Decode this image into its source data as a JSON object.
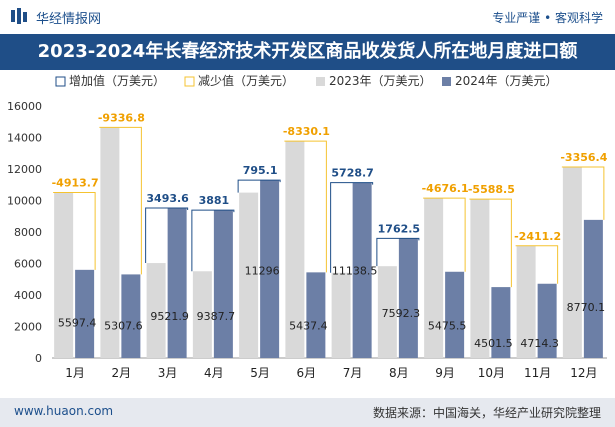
{
  "header": {
    "brand": "华经情报网",
    "tagline": "专业严谨 • 客观科学",
    "title": "2023-2024年长春经济技术开发区商品收发货人所在地月度进口额"
  },
  "footer": {
    "website": "www.huaon.com",
    "source": "数据来源：中国海关，华经产业研究院整理"
  },
  "colors": {
    "title_bg": "#1f4e87",
    "series_2023": "#d9d9d9",
    "series_2024": "#6c7fa6",
    "increase_border": "#1f4e87",
    "decrease_border": "#f5c330",
    "increase_label": "#1f4e87",
    "decrease_label": "#f0a000"
  },
  "chart_data": {
    "type": "bar",
    "title": "2023-2024年长春经济技术开发区商品收发货人所在地月度进口额",
    "ylim": [
      0,
      16000
    ],
    "yticks": [
      0,
      2000,
      4000,
      6000,
      8000,
      10000,
      12000,
      14000,
      16000
    ],
    "categories": [
      "1月",
      "2月",
      "3月",
      "4月",
      "5月",
      "6月",
      "7月",
      "8月",
      "9月",
      "10月",
      "11月",
      "12月"
    ],
    "legend": [
      "增加值（万美元）",
      "减少值（万美元）",
      "2023年（万美元）",
      "2024年（万美元）"
    ],
    "series": [
      {
        "name": "2023年（万美元）",
        "values": [
          10511.1,
          14644.4,
          6028.3,
          5506.7,
          10500.9,
          13767.5,
          5409.8,
          5829.7,
          10151.6,
          10090.0,
          7125.5,
          12126.7
        ]
      },
      {
        "name": "2024年（万美元）",
        "values": [
          5597.4,
          5307.6,
          9521.9,
          9387.7,
          11296,
          5437.4,
          11138.5,
          7592.3,
          5475.5,
          4501.5,
          4714.3,
          8770.1
        ]
      }
    ],
    "difference": [
      -4913.7,
      -9336.8,
      3493.6,
      3881,
      795.1,
      -8330.1,
      5728.7,
      1762.5,
      -4676.1,
      -5588.5,
      -2411.2,
      -3356.4
    ],
    "difference_labels": [
      "-4913.7",
      "-9336.8",
      "3493.6",
      "3881",
      "795.1",
      "-8330.1",
      "5728.7",
      "1762.5",
      "-4676.1",
      "-5588.5",
      "-2411.2",
      "-3356.4"
    ],
    "value_labels_2024": [
      "5597.4",
      "5307.6",
      "9521.9",
      "9387.7",
      "11296",
      "5437.4",
      "11138.5",
      "7592.3",
      "5475.5",
      "4501.5",
      "4714.3",
      "8770.1"
    ]
  }
}
